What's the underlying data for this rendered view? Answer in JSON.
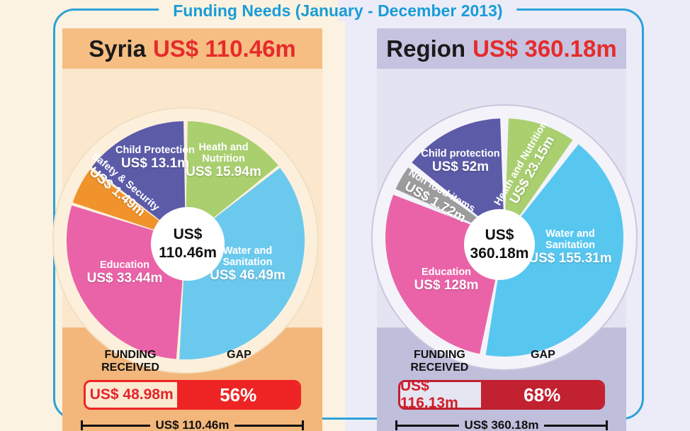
{
  "title": "Funding Needs (January - December 2013)",
  "colors": {
    "frame_blue": "#2BA2D8",
    "title_blue": "#199CD6",
    "syria_red": "#EE2424",
    "region_red": "#C22130",
    "amount_red": "#E62B2B"
  },
  "panels": [
    {
      "id": "syria",
      "name": "Syria",
      "total_label": "US$ 110.46m",
      "center_line1": "US$",
      "center_line2": "110.46m",
      "slices": [
        {
          "id": "health-nutrition",
          "name": "Heath and\nNutrition",
          "value_label": "US$ 15.94m",
          "color": "#A9CF6F",
          "start": 1,
          "end": 51
        },
        {
          "id": "water-sanitation",
          "name": "Water and\nSanitation",
          "value_label": "US$ 46.49m",
          "color": "#6BC9EE",
          "start": 52.5,
          "end": 183
        },
        {
          "id": "education",
          "name": "Education",
          "value_label": "US$ 33.44m",
          "color": "#EA63A8",
          "start": 184.5,
          "end": 287
        },
        {
          "id": "safety-security",
          "name": "Safety & Security",
          "value_label": "US$ 1.49m",
          "color": "#F0932C",
          "start": 288.5,
          "end": 306.5
        },
        {
          "id": "child-protection",
          "name": "Child Protection",
          "value_label": "US$ 13.1m",
          "color": "#5C5BA8",
          "start": 308,
          "end": 359
        }
      ],
      "funding": {
        "received_header": "FUNDING RECEIVED",
        "gap_header": "GAP",
        "received_label": "US$ 48.98m",
        "gap_label": "56%",
        "total_label": "US$ 110.46m",
        "received_width_pct": 43
      }
    },
    {
      "id": "region",
      "name": "Region",
      "total_label": "US$ 360.18m",
      "center_line1": "US$",
      "center_line2": "360.18m",
      "slices": [
        {
          "id": "health-nutrition",
          "name": "Heath and Nutrition",
          "value_label": "US$ 23.15m",
          "color": "#A9CF6F",
          "start": 2,
          "end": 35
        },
        {
          "id": "water-sanitation",
          "name": "Water and\nSanitation",
          "value_label": "US$ 155.31m",
          "color": "#58C7F0",
          "start": 38.5,
          "end": 189
        },
        {
          "id": "education",
          "name": "Education",
          "value_label": "US$ 128m",
          "color": "#EA63A8",
          "start": 192,
          "end": 291
        },
        {
          "id": "non-food-items",
          "name": "Non food items",
          "value_label": "US$ 1.72m",
          "color": "#9C9C9C",
          "start": 294,
          "end": 306
        },
        {
          "id": "child-protection",
          "name": "Child protection",
          "value_label": "US$ 52m",
          "color": "#5C5BA8",
          "start": 309,
          "end": 358
        }
      ],
      "funding": {
        "received_header": "FUNDING RECEIVED",
        "gap_header": "GAP",
        "received_label": "US$ 116.13m",
        "gap_label": "68%",
        "total_label": "US$ 360.18m",
        "received_width_pct": 40
      }
    }
  ],
  "chart_data": [
    {
      "type": "pie",
      "title": "Syria US$ 110.46m",
      "unit": "US$ millions",
      "labels": [
        "Heath and Nutrition",
        "Water and Sanitation",
        "Education",
        "Safety & Security",
        "Child Protection"
      ],
      "values": [
        15.94,
        46.49,
        33.44,
        1.49,
        13.1
      ],
      "total": 110.46,
      "funding_received": 48.98,
      "gap_percent": 56,
      "legend_position": "on-slice labels",
      "donut_center_label": "US$ 110.46m"
    },
    {
      "type": "pie",
      "title": "Region US$ 360.18m",
      "unit": "US$ millions",
      "labels": [
        "Heath and Nutrition",
        "Water and Sanitation",
        "Education",
        "Non food items",
        "Child protection"
      ],
      "values": [
        23.15,
        155.31,
        128,
        1.72,
        52
      ],
      "total": 360.18,
      "funding_received": 116.13,
      "gap_percent": 68,
      "legend_position": "on-slice labels",
      "donut_center_label": "US$ 360.18m"
    }
  ]
}
